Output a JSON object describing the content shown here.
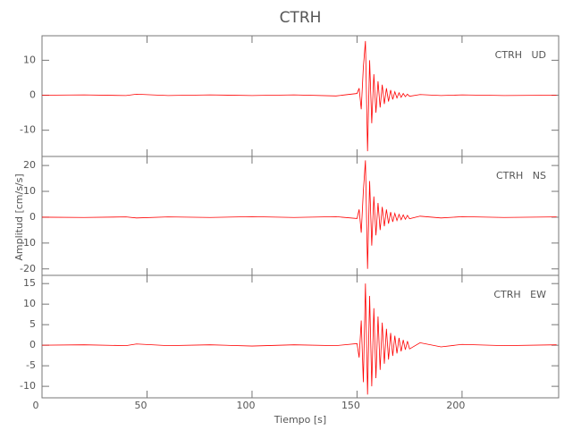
{
  "title": "CTRH",
  "xlabel": "Tiempo [s]",
  "ylabel": "Amplitud [cm/s/s]",
  "chart_data": [
    {
      "type": "line",
      "label": "CTRH   UD",
      "color": "#ff0000",
      "xlim": [
        0,
        246
      ],
      "ylim": [
        -17.5,
        17
      ],
      "yticks": [
        -10,
        0,
        10
      ],
      "x": [
        0,
        20,
        40,
        45,
        60,
        80,
        100,
        120,
        140,
        150,
        151,
        152,
        153,
        154,
        155,
        156,
        157,
        158,
        159,
        160,
        161,
        162,
        163,
        164,
        165,
        166,
        167,
        168,
        169,
        170,
        171,
        172,
        173,
        174,
        175,
        180,
        190,
        200,
        220,
        245
      ],
      "values": [
        0,
        0.1,
        -0.1,
        0.3,
        -0.1,
        0.1,
        -0.1,
        0.1,
        -0.2,
        0.5,
        2,
        -4,
        8,
        15.5,
        -16,
        10,
        -8,
        6,
        -5,
        4,
        -3.5,
        3,
        -2.5,
        2,
        -1.8,
        1.5,
        -1.2,
        1,
        -0.8,
        0.7,
        -0.6,
        0.5,
        -0.4,
        0.3,
        -0.3,
        0.2,
        -0.1,
        0.1,
        -0.1,
        0
      ]
    },
    {
      "type": "line",
      "label": "CTRH   NS",
      "color": "#ff0000",
      "xlim": [
        0,
        246
      ],
      "ylim": [
        -22.5,
        23.5
      ],
      "yticks": [
        -20,
        -10,
        0,
        10,
        20
      ],
      "x": [
        0,
        20,
        40,
        45,
        60,
        80,
        100,
        120,
        140,
        150,
        151,
        152,
        153,
        154,
        155,
        156,
        157,
        158,
        159,
        160,
        161,
        162,
        163,
        164,
        165,
        166,
        167,
        168,
        169,
        170,
        171,
        172,
        173,
        174,
        175,
        180,
        190,
        200,
        220,
        245
      ],
      "values": [
        0,
        -0.1,
        0.1,
        -0.3,
        0.1,
        -0.1,
        0.2,
        -0.1,
        0.2,
        -0.5,
        3,
        -6,
        10,
        22,
        -20,
        14,
        -11,
        8,
        -7,
        5.5,
        -5,
        4,
        -3.5,
        3,
        -2.5,
        2,
        -1.8,
        1.5,
        -1.3,
        1.1,
        -1,
        0.9,
        -0.8,
        0.7,
        -0.6,
        0.4,
        -0.3,
        0.2,
        -0.1,
        0.1
      ]
    },
    {
      "type": "line",
      "label": "CTRH   EW",
      "color": "#ff0000",
      "xlim": [
        0,
        246
      ],
      "ylim": [
        -12.8,
        17
      ],
      "yticks": [
        -10,
        -5,
        0,
        5,
        10,
        15
      ],
      "xticks": [
        0,
        50,
        100,
        150,
        200
      ],
      "x": [
        0,
        20,
        40,
        45,
        60,
        80,
        100,
        120,
        140,
        150,
        151,
        152,
        153,
        154,
        155,
        156,
        157,
        158,
        159,
        160,
        161,
        162,
        163,
        164,
        165,
        166,
        167,
        168,
        169,
        170,
        171,
        172,
        173,
        174,
        175,
        180,
        190,
        200,
        220,
        245
      ],
      "values": [
        0,
        0.1,
        -0.1,
        0.3,
        -0.1,
        0.1,
        -0.2,
        0.1,
        -0.1,
        0.4,
        -3,
        6,
        -9,
        15,
        -12,
        12,
        -10,
        9,
        -8,
        7,
        -6,
        5.5,
        -4.5,
        4,
        -3.5,
        3,
        -2.6,
        2.3,
        -2,
        1.8,
        -1.5,
        1.3,
        -1.1,
        1,
        -0.9,
        0.6,
        -0.4,
        0.2,
        -0.1,
        0.1
      ]
    }
  ]
}
